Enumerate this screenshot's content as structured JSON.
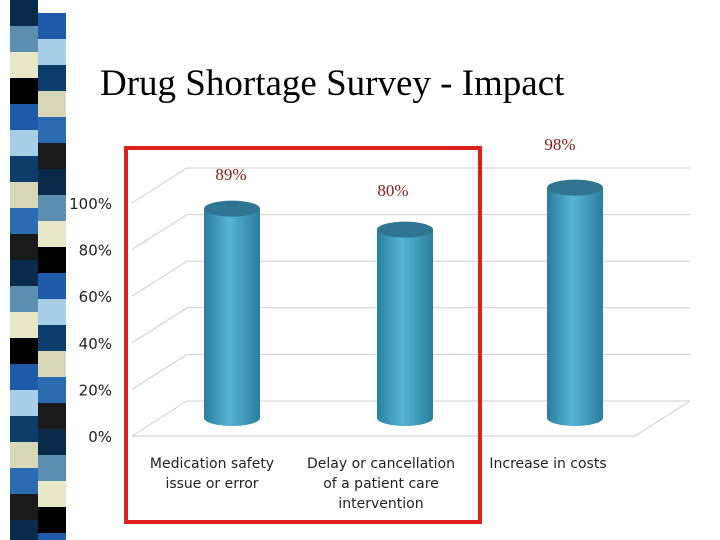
{
  "slide": {
    "title": "Drug Shortage Survey - Impact"
  },
  "colors": {
    "highlight_box": "#e0201c",
    "bar_body": "#3d9cbd",
    "bar_top": "#2f7591",
    "value_label": "#8b1a1a"
  },
  "chart_data": {
    "type": "bar",
    "categories": [
      "Medication safety issue or error",
      "Delay or cancellation of a patient care intervention",
      "Increase in costs"
    ],
    "category_label_lines": [
      [
        "Medication safety",
        "issue or error"
      ],
      [
        "Delay or cancellation",
        "of a patient care",
        "intervention"
      ],
      [
        "Increase in costs"
      ]
    ],
    "values": [
      89,
      80,
      98
    ],
    "value_labels": [
      "89%",
      "80%",
      "98%"
    ],
    "y_ticks": [
      "0%",
      "20%",
      "40%",
      "60%",
      "80%",
      "100%"
    ],
    "ylim": [
      0,
      100
    ],
    "grid": true,
    "highlighted_categories": [
      "Medication safety issue or error",
      "Delay or cancellation of a patient care intervention"
    ]
  }
}
